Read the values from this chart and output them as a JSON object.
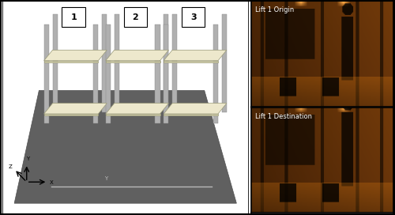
{
  "fig_width": 5.0,
  "fig_height": 2.72,
  "dpi": 100,
  "background_color": "#ffffff",
  "floor_color": "#606060",
  "shelf_color": "#ede8cc",
  "pole_color": "#b0b0b0",
  "pole_edge": "#888888",
  "shelf_edge": "#999977",
  "white_line_color": "#b8b8b8",
  "labels": [
    "1",
    "2",
    "3"
  ],
  "label1_text": "Lift 1 Origin",
  "label2_text": "Lift 1 Destination",
  "border_color": "#000000"
}
